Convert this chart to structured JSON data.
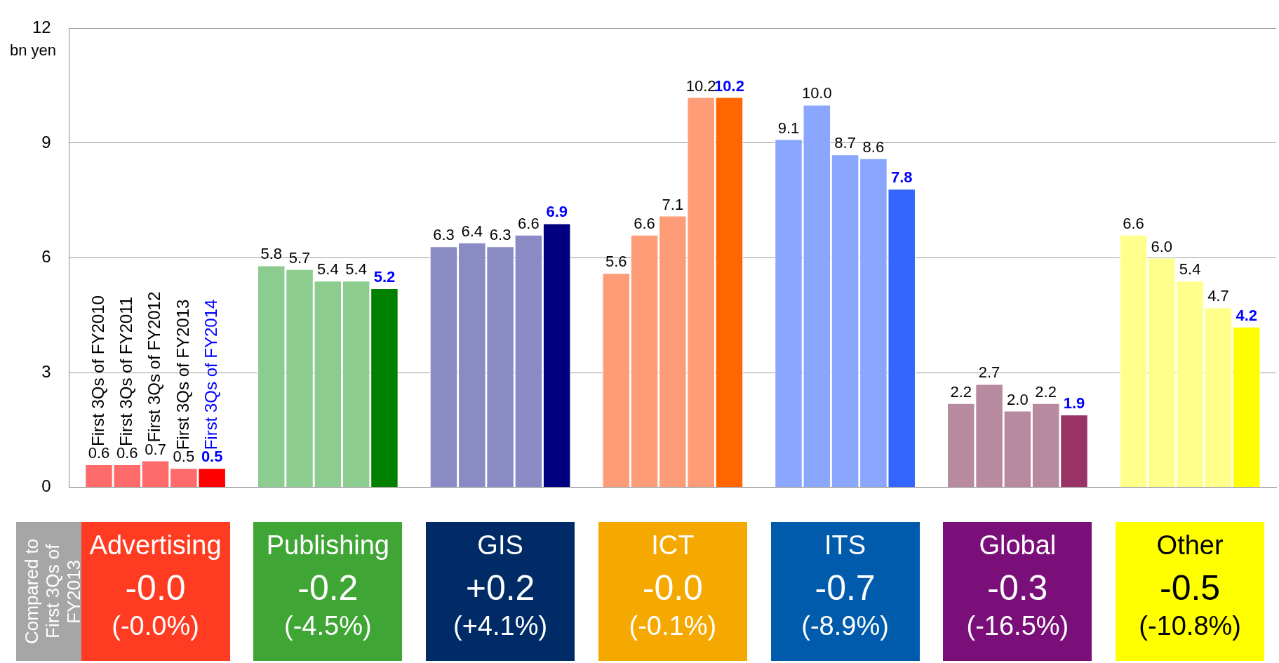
{
  "chart_data": {
    "type": "bar",
    "ylabel": "bn yen",
    "categories": [
      "Advertising",
      "Publishing",
      "GIS",
      "ICT",
      "ITS",
      "Global",
      "Other"
    ],
    "series": [
      {
        "name": "First 3Qs of FY2010",
        "colors": [
          "#ff6a6a",
          "#8ccc8e",
          "#8a8ac4",
          "#ff9c78",
          "#8aa6ff",
          "#b88aa0",
          "#ffff8c"
        ],
        "values": [
          0.6,
          5.8,
          6.3,
          5.6,
          9.1,
          2.2,
          6.6
        ],
        "value_labels": [
          "0.6",
          "5.8",
          "6.3",
          "5.6",
          "9.1",
          "2.2",
          "6.6"
        ]
      },
      {
        "name": "First 3Qs of FY2011",
        "colors": [
          "#ff6a6a",
          "#8ccc8e",
          "#8a8ac4",
          "#ff9c78",
          "#8aa6ff",
          "#b88aa0",
          "#ffff8c"
        ],
        "values": [
          0.6,
          5.7,
          6.4,
          6.6,
          10.0,
          2.7,
          6.0
        ],
        "value_labels": [
          "0.6",
          "5.7",
          "6.4",
          "6.6",
          "10.0",
          "2.7",
          "6.0"
        ]
      },
      {
        "name": "First 3Qs of FY2012",
        "colors": [
          "#ff6a6a",
          "#8ccc8e",
          "#8a8ac4",
          "#ff9c78",
          "#8aa6ff",
          "#b88aa0",
          "#ffff8c"
        ],
        "values": [
          0.7,
          5.4,
          6.3,
          7.1,
          8.7,
          2.0,
          5.4
        ],
        "value_labels": [
          "0.7",
          "5.4",
          "6.3",
          "7.1",
          "8.7",
          "2.0",
          "5.4"
        ]
      },
      {
        "name": "First 3Qs of FY2013",
        "colors": [
          "#ff6a6a",
          "#8ccc8e",
          "#8a8ac4",
          "#ff9c78",
          "#8aa6ff",
          "#b88aa0",
          "#ffff8c"
        ],
        "values": [
          0.5,
          5.4,
          6.6,
          10.2,
          8.6,
          2.2,
          4.7
        ],
        "value_labels": [
          "0.5",
          "5.4",
          "6.6",
          "10.2",
          "8.6",
          "2.2",
          "4.7"
        ]
      },
      {
        "name": "First 3Qs of FY2014",
        "colors": [
          "#ff0000",
          "#008000",
          "#000080",
          "#ff6600",
          "#3366ff",
          "#993366",
          "#ffff00"
        ],
        "values": [
          0.5,
          5.2,
          6.9,
          10.2,
          7.8,
          1.9,
          4.2
        ],
        "value_labels": [
          "0.5",
          "5.2",
          "6.9",
          "10.2",
          "7.8",
          "1.9",
          "4.2"
        ]
      }
    ],
    "ylim": [
      0,
      12
    ],
    "yticks": [
      0,
      3,
      6,
      9,
      12
    ],
    "grid": "y",
    "annotations": [
      "Compared to First 3Qs of FY2013",
      "-0.0\n(-0.0%)",
      "-0.2\n(-4.5%)",
      "+0.2\n(+4.1%)",
      "-0.0\n(-0.1%)",
      "-0.7\n(-8.9%)",
      "-0.3\n(-16.5%)",
      "-0.5\n(-10.8%)"
    ]
  }
}
